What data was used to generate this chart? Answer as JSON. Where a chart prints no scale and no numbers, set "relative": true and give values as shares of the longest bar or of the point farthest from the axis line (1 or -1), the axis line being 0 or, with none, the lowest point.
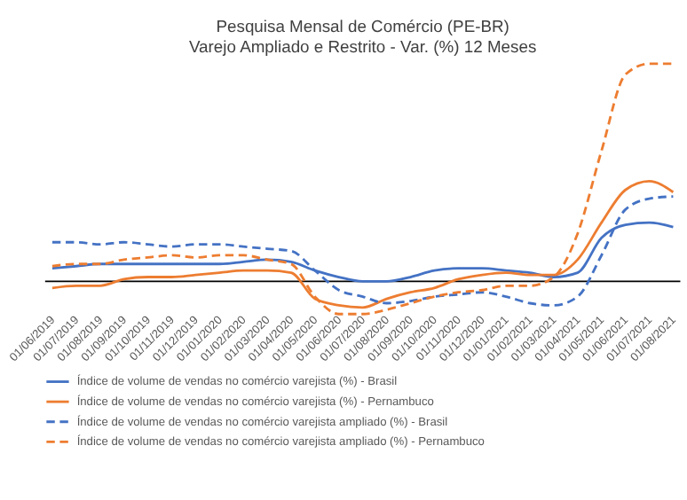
{
  "chart_data": {
    "type": "line",
    "title": [
      "Pesquisa Mensal de Comércio (PE-BR)",
      "Varejo Ampliado e Restrito - Var. (%) 12 Meses"
    ],
    "categories": [
      "01/06/2019",
      "01/07/2019",
      "01/08/2019",
      "01/09/2019",
      "01/10/2019",
      "01/11/2019",
      "01/12/2019",
      "01/01/2020",
      "01/02/2020",
      "01/03/2020",
      "01/04/2020",
      "01/05/2020",
      "01/06/2020",
      "01/07/2020",
      "01/08/2020",
      "01/09/2020",
      "01/10/2020",
      "01/11/2020",
      "01/12/2020",
      "01/01/2021",
      "01/02/2021",
      "01/03/2021",
      "01/04/2021",
      "01/05/2021",
      "01/06/2021",
      "01/07/2021",
      "01/08/2021"
    ],
    "relative": true,
    "legend": "bottom",
    "grid": false,
    "marker": "none",
    "series": [
      {
        "name": "Índice de volume de vendas no comércio varejista (%) - Brasil",
        "color": "#4472c4",
        "line_style": "solid",
        "values": [
          0.06,
          0.07,
          0.08,
          0.08,
          0.08,
          0.08,
          0.08,
          0.08,
          0.09,
          0.1,
          0.09,
          0.05,
          0.02,
          0,
          0,
          0.02,
          0.05,
          0.06,
          0.06,
          0.05,
          0.04,
          0.02,
          0.04,
          0.2,
          0.26,
          0.27,
          0.25
        ]
      },
      {
        "name": "Índice de volume de vendas no comércio varejista (%) - Pernambuco",
        "color": "#ed7d31",
        "line_style": "solid",
        "values": [
          -0.03,
          -0.02,
          -0.02,
          0.01,
          0.02,
          0.02,
          0.03,
          0.04,
          0.05,
          0.05,
          0.04,
          -0.08,
          -0.11,
          -0.12,
          -0.08,
          -0.05,
          -0.03,
          0.01,
          0.03,
          0.04,
          0.03,
          0.03,
          0.1,
          0.27,
          0.42,
          0.46,
          0.41
        ]
      },
      {
        "name": "Índice de volume de vendas no comércio varejista ampliado (%) - Brasil",
        "color": "#4472c4",
        "line_style": "dashed",
        "values": [
          0.18,
          0.18,
          0.17,
          0.18,
          0.17,
          0.16,
          0.17,
          0.17,
          0.16,
          0.15,
          0.14,
          0.05,
          -0.04,
          -0.07,
          -0.1,
          -0.09,
          -0.07,
          -0.06,
          -0.05,
          -0.07,
          -0.1,
          -0.11,
          -0.07,
          0.12,
          0.33,
          0.38,
          0.39
        ]
      },
      {
        "name": "Índice de volume de vendas no comércio varejista ampliado (%) - Pernambuco",
        "color": "#ed7d31",
        "line_style": "dashed",
        "values": [
          0.07,
          0.08,
          0.08,
          0.1,
          0.11,
          0.12,
          0.11,
          0.12,
          0.12,
          0.1,
          0.08,
          -0.07,
          -0.15,
          -0.15,
          -0.13,
          -0.1,
          -0.07,
          -0.05,
          -0.04,
          -0.02,
          -0.02,
          0.02,
          0.22,
          0.6,
          0.95,
          1,
          1
        ]
      }
    ]
  }
}
